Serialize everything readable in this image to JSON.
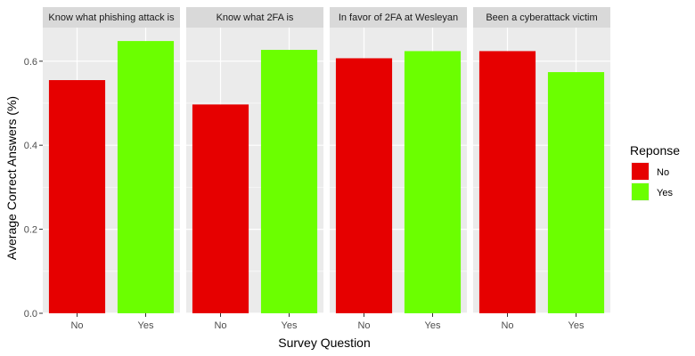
{
  "chart_data": {
    "type": "bar",
    "xlabel": "Survey Question",
    "ylabel": "Average Correct Answers (%)",
    "ylim": [
      0,
      0.68
    ],
    "yticks": [
      0.0,
      0.2,
      0.4,
      0.6
    ],
    "ytick_labels": [
      "0.0",
      "0.2",
      "0.4",
      "0.6"
    ],
    "grid": true,
    "legend": {
      "title": "Reponse",
      "placement": "right",
      "entries": [
        {
          "label": "No",
          "color": "#e60000"
        },
        {
          "label": "Yes",
          "color": "#6bff00"
        }
      ]
    },
    "categories": [
      "No",
      "Yes"
    ],
    "panels": [
      {
        "title": "Know what phishing attack is",
        "values": [
          0.555,
          0.648
        ]
      },
      {
        "title": "Know what 2FA is",
        "values": [
          0.497,
          0.627
        ]
      },
      {
        "title": "In favor of 2FA at Wesleyan",
        "values": [
          0.607,
          0.624
        ]
      },
      {
        "title": "Been a cyberattack victim",
        "values": [
          0.624,
          0.574
        ]
      }
    ]
  },
  "colors": {
    "panel_bg": "#ebebeb",
    "strip_bg": "#d9d9d9",
    "grid": "#ffffff",
    "tick": "#333333"
  }
}
